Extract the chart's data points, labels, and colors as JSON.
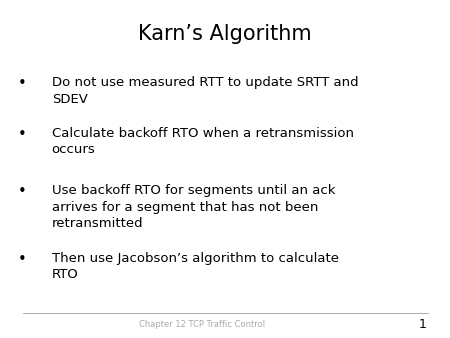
{
  "title": "Karn’s Algorithm",
  "title_fontsize": 15,
  "title_fontfamily": "DejaVu Sans",
  "background_color": "#ffffff",
  "text_color": "#000000",
  "bullet_points": [
    "Do not use measured RTT to update SRTT and\nSDEV",
    "Calculate backoff RTO when a retransmission\noccurs",
    "Use backoff RTO for segments until an ack\narrives for a segment that has not been\nretransmitted",
    "Then use Jacobson’s algorithm to calculate\nRTO"
  ],
  "bullet_fontsize": 9.5,
  "bullet_symbol": "•",
  "footer_text": "Chapter 12 TCP Traffic Control",
  "footer_number": "1",
  "footer_fontsize": 6.0,
  "footer_num_fontsize": 9.0
}
